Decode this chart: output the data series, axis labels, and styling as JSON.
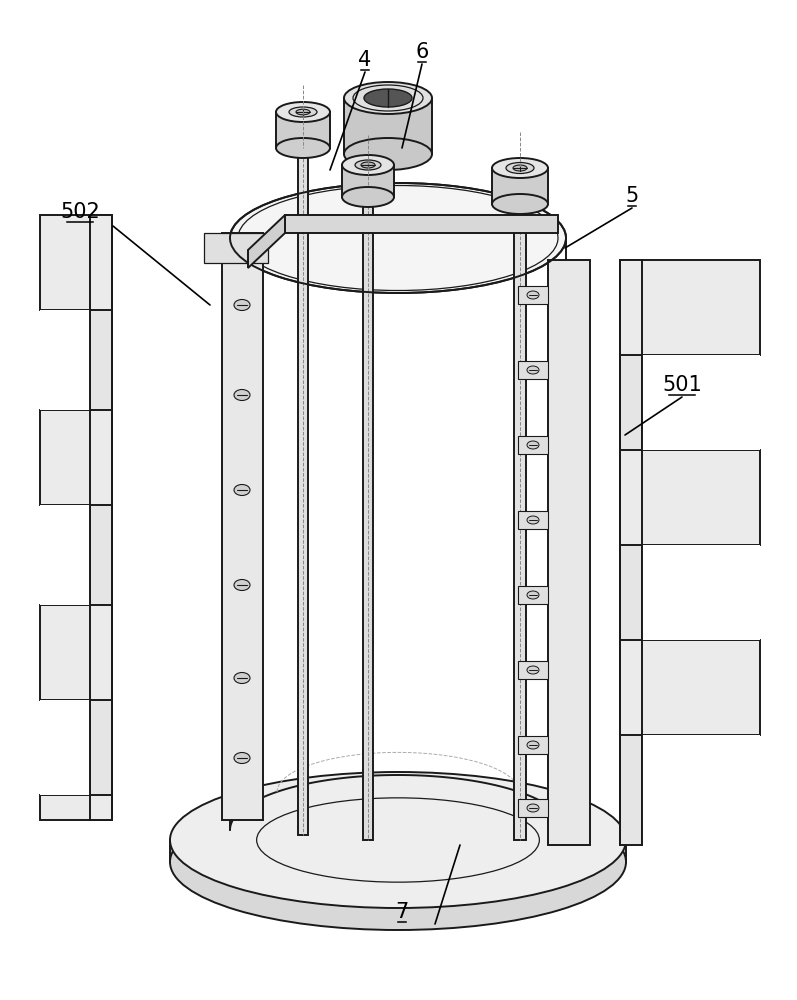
{
  "bg": "#ffffff",
  "lc": "#1a1a1a",
  "fc_light": "#f0f0f0",
  "fc_mid": "#e0e0e0",
  "fc_dark": "#c8c8c8",
  "lw_main": 1.4,
  "lw_thin": 0.9,
  "lw_dash": 0.7
}
